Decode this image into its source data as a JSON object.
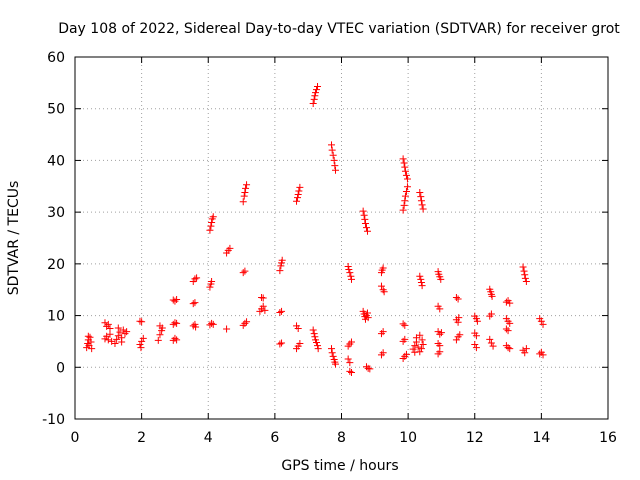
{
  "chart_data": {
    "type": "scatter",
    "title": "Day 108 of 2022, Sidereal Day-to-day VTEC variation (SDTVAR) for receiver grot",
    "xlabel": "GPS time / hours",
    "ylabel": "SDTVAR / TECUs",
    "xlim": [
      0,
      16
    ],
    "ylim": [
      -10,
      60
    ],
    "xticks": [
      "0",
      "2",
      "4",
      "6",
      "8",
      "10",
      "12",
      "14",
      "16"
    ],
    "yticks": [
      "-10",
      "0",
      "10",
      "20",
      "30",
      "40",
      "50",
      "60"
    ],
    "grid": true,
    "marker": "+",
    "color": "#ff0000",
    "series": [
      {
        "name": "SDTVAR",
        "points": [
          [
            0.35,
            3.8
          ],
          [
            0.38,
            4.6
          ],
          [
            0.4,
            5.3
          ],
          [
            0.42,
            4.2
          ],
          [
            0.45,
            5.8
          ],
          [
            0.48,
            4.9
          ],
          [
            0.5,
            3.6
          ],
          [
            0.4,
            6.0
          ],
          [
            0.9,
            8.6
          ],
          [
            0.95,
            7.9
          ],
          [
            1.0,
            8.3
          ],
          [
            1.05,
            7.5
          ],
          [
            0.9,
            5.5
          ],
          [
            0.95,
            6.0
          ],
          [
            1.0,
            5.3
          ],
          [
            1.05,
            6.4
          ],
          [
            1.1,
            5.0
          ],
          [
            1.2,
            4.6
          ],
          [
            1.25,
            5.4
          ],
          [
            1.3,
            6.1
          ],
          [
            1.35,
            6.8
          ],
          [
            1.4,
            5.7
          ],
          [
            1.45,
            7.2
          ],
          [
            1.5,
            6.5
          ],
          [
            1.55,
            6.9
          ],
          [
            1.3,
            7.6
          ],
          [
            1.4,
            4.9
          ],
          [
            1.95,
            8.9
          ],
          [
            2.0,
            8.8
          ],
          [
            1.95,
            4.4
          ],
          [
            2.0,
            5.0
          ],
          [
            2.05,
            5.6
          ],
          [
            1.98,
            3.8
          ],
          [
            2.5,
            5.2
          ],
          [
            2.55,
            6.3
          ],
          [
            2.6,
            7.1
          ],
          [
            2.55,
            8.0
          ],
          [
            2.62,
            7.6
          ],
          [
            2.95,
            13.0
          ],
          [
            3.0,
            12.8
          ],
          [
            3.05,
            13.1
          ],
          [
            2.95,
            8.3
          ],
          [
            3.0,
            8.6
          ],
          [
            3.05,
            8.5
          ],
          [
            2.95,
            5.2
          ],
          [
            3.0,
            5.6
          ],
          [
            3.05,
            5.3
          ],
          [
            3.55,
            8.0
          ],
          [
            3.6,
            8.3
          ],
          [
            3.62,
            7.8
          ],
          [
            3.55,
            12.3
          ],
          [
            3.6,
            12.5
          ],
          [
            3.55,
            16.6
          ],
          [
            3.6,
            17.1
          ],
          [
            3.65,
            17.3
          ],
          [
            4.05,
            26.5
          ],
          [
            4.08,
            27.3
          ],
          [
            4.1,
            28.0
          ],
          [
            4.12,
            28.7
          ],
          [
            4.15,
            29.1
          ],
          [
            4.05,
            15.5
          ],
          [
            4.08,
            16.1
          ],
          [
            4.1,
            16.6
          ],
          [
            4.05,
            8.2
          ],
          [
            4.1,
            8.5
          ],
          [
            4.15,
            8.3
          ],
          [
            4.55,
            22.1
          ],
          [
            4.6,
            22.6
          ],
          [
            4.65,
            23.0
          ],
          [
            4.55,
            7.4
          ],
          [
            5.05,
            32.0
          ],
          [
            5.08,
            33.1
          ],
          [
            5.1,
            33.8
          ],
          [
            5.12,
            34.6
          ],
          [
            5.15,
            35.3
          ],
          [
            5.05,
            18.3
          ],
          [
            5.1,
            18.6
          ],
          [
            5.05,
            8.1
          ],
          [
            5.1,
            8.5
          ],
          [
            5.15,
            8.8
          ],
          [
            5.55,
            10.8
          ],
          [
            5.6,
            11.3
          ],
          [
            5.65,
            11.8
          ],
          [
            5.7,
            11.0
          ],
          [
            5.6,
            13.5
          ],
          [
            5.65,
            13.4
          ],
          [
            6.15,
            18.7
          ],
          [
            6.18,
            19.6
          ],
          [
            6.2,
            20.2
          ],
          [
            6.22,
            20.7
          ],
          [
            6.15,
            10.6
          ],
          [
            6.2,
            10.8
          ],
          [
            6.15,
            4.5
          ],
          [
            6.2,
            4.7
          ],
          [
            6.65,
            32.1
          ],
          [
            6.68,
            32.8
          ],
          [
            6.7,
            33.4
          ],
          [
            6.72,
            34.1
          ],
          [
            6.75,
            34.8
          ],
          [
            6.65,
            8.0
          ],
          [
            6.7,
            7.5
          ],
          [
            6.65,
            3.6
          ],
          [
            6.7,
            4.1
          ],
          [
            6.75,
            4.6
          ],
          [
            7.15,
            51.0
          ],
          [
            7.18,
            51.8
          ],
          [
            7.2,
            52.5
          ],
          [
            7.22,
            53.1
          ],
          [
            7.25,
            53.7
          ],
          [
            7.28,
            54.3
          ],
          [
            7.15,
            7.2
          ],
          [
            7.18,
            6.5
          ],
          [
            7.2,
            5.9
          ],
          [
            7.22,
            5.3
          ],
          [
            7.25,
            4.8
          ],
          [
            7.28,
            4.2
          ],
          [
            7.3,
            3.6
          ],
          [
            7.7,
            43.0
          ],
          [
            7.72,
            42.0
          ],
          [
            7.75,
            41.0
          ],
          [
            7.78,
            40.0
          ],
          [
            7.8,
            39.0
          ],
          [
            7.82,
            38.1
          ],
          [
            7.7,
            3.6
          ],
          [
            7.72,
            2.8
          ],
          [
            7.75,
            2.1
          ],
          [
            7.78,
            1.5
          ],
          [
            7.8,
            1.0
          ],
          [
            7.82,
            0.6
          ],
          [
            8.2,
            19.5
          ],
          [
            8.22,
            18.9
          ],
          [
            8.25,
            18.3
          ],
          [
            8.28,
            17.6
          ],
          [
            8.3,
            17.0
          ],
          [
            8.2,
            4.1
          ],
          [
            8.25,
            4.5
          ],
          [
            8.3,
            4.9
          ],
          [
            8.2,
            1.6
          ],
          [
            8.25,
            0.9
          ],
          [
            8.25,
            -0.8
          ],
          [
            8.3,
            -1.0
          ],
          [
            8.65,
            30.2
          ],
          [
            8.68,
            29.4
          ],
          [
            8.7,
            28.6
          ],
          [
            8.72,
            27.8
          ],
          [
            8.75,
            27.0
          ],
          [
            8.78,
            26.3
          ],
          [
            8.65,
            10.8
          ],
          [
            8.68,
            10.3
          ],
          [
            8.7,
            9.8
          ],
          [
            8.72,
            9.3
          ],
          [
            8.75,
            10.0
          ],
          [
            8.78,
            10.5
          ],
          [
            8.8,
            9.6
          ],
          [
            8.75,
            0.1
          ],
          [
            8.8,
            -0.2
          ],
          [
            8.85,
            -0.3
          ],
          [
            9.2,
            18.3
          ],
          [
            9.22,
            18.8
          ],
          [
            9.25,
            19.2
          ],
          [
            9.2,
            15.7
          ],
          [
            9.25,
            15.0
          ],
          [
            9.28,
            14.6
          ],
          [
            9.2,
            6.5
          ],
          [
            9.25,
            6.9
          ],
          [
            9.2,
            2.4
          ],
          [
            9.25,
            2.8
          ],
          [
            9.85,
            40.3
          ],
          [
            9.88,
            39.5
          ],
          [
            9.9,
            38.7
          ],
          [
            9.92,
            37.9
          ],
          [
            9.95,
            37.1
          ],
          [
            9.98,
            36.4
          ],
          [
            9.85,
            30.4
          ],
          [
            9.88,
            31.3
          ],
          [
            9.9,
            32.2
          ],
          [
            9.92,
            33.1
          ],
          [
            9.95,
            34.0
          ],
          [
            9.98,
            34.9
          ],
          [
            9.85,
            8.4
          ],
          [
            9.9,
            8.1
          ],
          [
            9.85,
            5.0
          ],
          [
            9.9,
            5.4
          ],
          [
            9.85,
            1.7
          ],
          [
            9.9,
            2.1
          ],
          [
            9.95,
            2.5
          ],
          [
            10.15,
            3.5
          ],
          [
            10.2,
            4.2
          ],
          [
            10.25,
            4.9
          ],
          [
            10.3,
            3.9
          ],
          [
            10.35,
            3.0
          ],
          [
            10.4,
            3.6
          ],
          [
            10.45,
            4.4
          ],
          [
            10.25,
            5.7
          ],
          [
            10.35,
            6.2
          ],
          [
            10.2,
            2.9
          ],
          [
            10.42,
            5.3
          ],
          [
            10.35,
            33.8
          ],
          [
            10.38,
            33.0
          ],
          [
            10.4,
            32.2
          ],
          [
            10.42,
            31.4
          ],
          [
            10.45,
            30.6
          ],
          [
            10.35,
            17.6
          ],
          [
            10.38,
            17.0
          ],
          [
            10.4,
            16.4
          ],
          [
            10.42,
            15.8
          ],
          [
            10.9,
            18.5
          ],
          [
            10.92,
            18.0
          ],
          [
            10.95,
            17.5
          ],
          [
            10.98,
            17.0
          ],
          [
            10.9,
            11.8
          ],
          [
            10.95,
            11.3
          ],
          [
            10.9,
            6.9
          ],
          [
            10.95,
            6.4
          ],
          [
            11.0,
            6.7
          ],
          [
            10.9,
            4.6
          ],
          [
            10.95,
            4.2
          ],
          [
            10.9,
            2.6
          ],
          [
            10.95,
            3.0
          ],
          [
            11.45,
            13.5
          ],
          [
            11.5,
            13.2
          ],
          [
            11.45,
            9.2
          ],
          [
            11.5,
            8.7
          ],
          [
            11.52,
            9.6
          ],
          [
            11.45,
            5.3
          ],
          [
            11.5,
            5.9
          ],
          [
            11.55,
            6.3
          ],
          [
            12.0,
            9.9
          ],
          [
            12.05,
            9.4
          ],
          [
            12.08,
            8.9
          ],
          [
            12.0,
            6.6
          ],
          [
            12.05,
            6.1
          ],
          [
            12.0,
            4.4
          ],
          [
            12.05,
            3.8
          ],
          [
            12.45,
            15.1
          ],
          [
            12.48,
            14.6
          ],
          [
            12.5,
            14.1
          ],
          [
            12.52,
            13.7
          ],
          [
            12.45,
            9.9
          ],
          [
            12.5,
            10.3
          ],
          [
            12.45,
            5.4
          ],
          [
            12.5,
            4.7
          ],
          [
            12.55,
            4.1
          ],
          [
            12.95,
            12.6
          ],
          [
            13.0,
            12.9
          ],
          [
            13.05,
            12.4
          ],
          [
            12.95,
            9.4
          ],
          [
            13.0,
            8.9
          ],
          [
            13.05,
            8.5
          ],
          [
            12.95,
            7.4
          ],
          [
            13.0,
            7.1
          ],
          [
            12.95,
            4.2
          ],
          [
            13.0,
            3.8
          ],
          [
            13.05,
            3.6
          ],
          [
            13.45,
            19.4
          ],
          [
            13.48,
            18.6
          ],
          [
            13.5,
            17.9
          ],
          [
            13.52,
            17.2
          ],
          [
            13.55,
            16.6
          ],
          [
            13.45,
            3.3
          ],
          [
            13.5,
            2.8
          ],
          [
            13.55,
            3.6
          ],
          [
            13.95,
            9.4
          ],
          [
            14.0,
            8.9
          ],
          [
            14.05,
            8.3
          ],
          [
            13.95,
            2.6
          ],
          [
            14.0,
            2.9
          ],
          [
            14.05,
            2.4
          ]
        ]
      }
    ]
  }
}
